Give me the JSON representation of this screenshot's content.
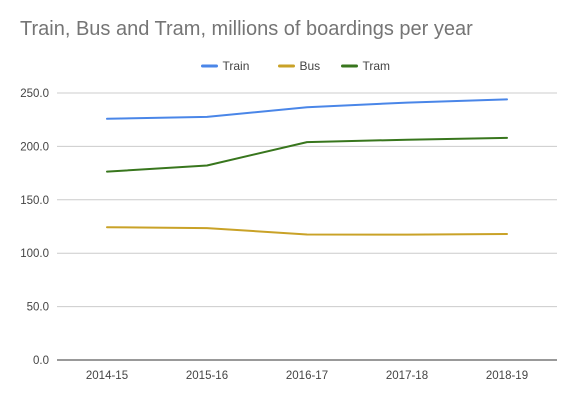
{
  "chart_data": {
    "type": "line",
    "title": "Train, Bus and Tram, millions of boardings per year",
    "xlabel": "",
    "ylabel": "",
    "categories": [
      "2014-15",
      "2015-16",
      "2016-17",
      "2017-18",
      "2018-19"
    ],
    "ylim": [
      0,
      250
    ],
    "yticks": [
      "0.0",
      "50.0",
      "100.0",
      "150.0",
      "200.0",
      "250.0"
    ],
    "grid": true,
    "legend_position": "top",
    "series": [
      {
        "name": "Train",
        "color": "#4a86e8",
        "values": [
          225.8,
          227.6,
          236.7,
          241.0,
          244.0
        ]
      },
      {
        "name": "Bus",
        "color": "#c9a227",
        "values": [
          124.3,
          123.5,
          117.5,
          117.4,
          118.0
        ]
      },
      {
        "name": "Tram",
        "color": "#38761d",
        "values": [
          176.4,
          182.1,
          204.0,
          206.3,
          208.0
        ]
      }
    ]
  }
}
